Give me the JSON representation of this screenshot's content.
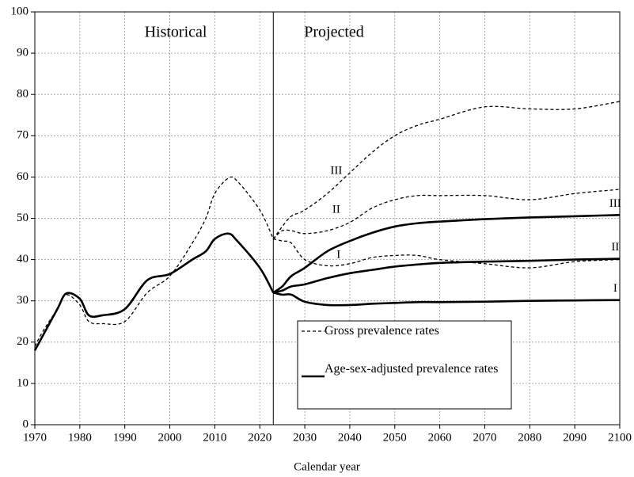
{
  "chart_data": {
    "type": "line",
    "x_label": "Calendar year",
    "annotations": [
      "Historical",
      "Projected"
    ],
    "divider": 2023,
    "xlim": [
      1970,
      2100
    ],
    "xticks": [
      1970,
      1980,
      1990,
      2000,
      2010,
      2020,
      2030,
      2040,
      2050,
      2060,
      2070,
      2080,
      2090,
      2100
    ],
    "ylim": [
      0,
      100
    ],
    "yticks": [
      0,
      10,
      20,
      30,
      40,
      50,
      60,
      70,
      80,
      90,
      100
    ],
    "grid": true,
    "x": [
      1970,
      1972,
      1975,
      1977,
      1980,
      1982,
      1985,
      1990,
      1995,
      2000,
      2005,
      2008,
      2010,
      2013,
      2015,
      2020,
      2023
    ],
    "x_projected": [
      2023,
      2025,
      2027,
      2030,
      2035,
      2040,
      2045,
      2050,
      2055,
      2060,
      2070,
      2080,
      2090,
      2100
    ],
    "series": [
      {
        "name": "Gross prevalence rates",
        "color": "#000000",
        "dashed": true,
        "values": [
          19,
          23,
          28,
          31.5,
          29,
          25,
          24.5,
          25,
          32,
          36,
          44,
          50,
          56,
          59.7,
          59,
          52,
          45
        ],
        "scenarios": [
          {
            "label": "I",
            "values": [
              45,
              44.5,
              44,
              40,
              38.5,
              39,
              40.5,
              41,
              41,
              40,
              39,
              38,
              39.5,
              40
            ]
          },
          {
            "label": "II",
            "values": [
              45,
              47,
              47,
              46.3,
              47,
              49,
              52.5,
              54.5,
              55.5,
              55.5,
              55.5,
              54.5,
              56,
              57
            ]
          },
          {
            "label": "III",
            "values": [
              45,
              48,
              50.5,
              52,
              56,
              61,
              66,
              70,
              72.5,
              74,
              77,
              76.5,
              76.5,
              78.3
            ]
          }
        ]
      },
      {
        "name": "Age-sex-adjusted prevalence rates",
        "color": "#000000",
        "dashed": false,
        "values": [
          18,
          22,
          28,
          31.8,
          30.5,
          26.5,
          26.5,
          28,
          35,
          36.5,
          40,
          42,
          45,
          46.3,
          44.5,
          38,
          32
        ],
        "scenarios": [
          {
            "label": "I",
            "values": [
              32,
              31.5,
              31.5,
              29.8,
              29,
              29,
              29.3,
              29.5,
              29.7,
              29.7,
              29.8,
              30,
              30.1,
              30.2
            ]
          },
          {
            "label": "II",
            "values": [
              32,
              32.5,
              33.5,
              34,
              35.5,
              36.7,
              37.5,
              38.3,
              38.8,
              39.2,
              39.5,
              39.7,
              40,
              40.2
            ]
          },
          {
            "label": "III",
            "values": [
              32,
              33.5,
              36,
              38,
              42,
              44.5,
              46.5,
              48,
              48.8,
              49.2,
              49.8,
              50.2,
              50.5,
              50.8
            ]
          }
        ]
      }
    ]
  }
}
